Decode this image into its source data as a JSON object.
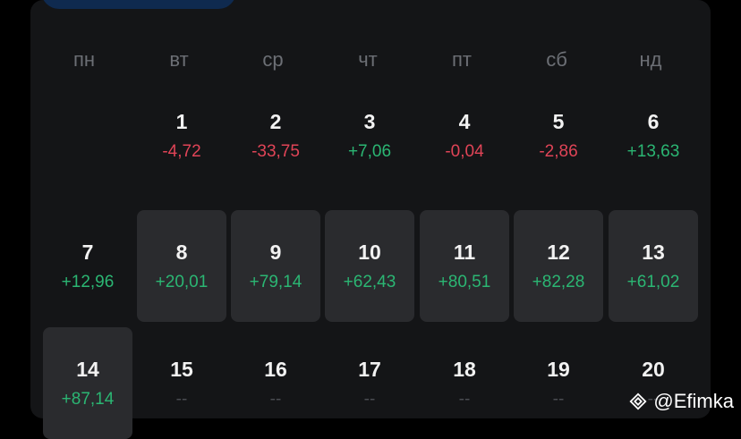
{
  "weekdays": [
    "пн",
    "вт",
    "ср",
    "чт",
    "пт",
    "сб",
    "нд"
  ],
  "rows": [
    [
      null,
      {
        "day": "1",
        "value": "-4,72",
        "status": "neg",
        "highlight": false
      },
      {
        "day": "2",
        "value": "-33,75",
        "status": "neg",
        "highlight": false
      },
      {
        "day": "3",
        "value": "+7,06",
        "status": "pos",
        "highlight": false
      },
      {
        "day": "4",
        "value": "-0,04",
        "status": "neg",
        "highlight": false
      },
      {
        "day": "5",
        "value": "-2,86",
        "status": "neg",
        "highlight": false
      },
      {
        "day": "6",
        "value": "+13,63",
        "status": "pos",
        "highlight": false
      }
    ],
    [
      {
        "day": "7",
        "value": "+12,96",
        "status": "pos",
        "highlight": false
      },
      {
        "day": "8",
        "value": "+20,01",
        "status": "pos",
        "highlight": true
      },
      {
        "day": "9",
        "value": "+79,14",
        "status": "pos",
        "highlight": true
      },
      {
        "day": "10",
        "value": "+62,43",
        "status": "pos",
        "highlight": true
      },
      {
        "day": "11",
        "value": "+80,51",
        "status": "pos",
        "highlight": true
      },
      {
        "day": "12",
        "value": "+82,28",
        "status": "pos",
        "highlight": true
      },
      {
        "day": "13",
        "value": "+61,02",
        "status": "pos",
        "highlight": true
      }
    ],
    [
      {
        "day": "14",
        "value": "+87,14",
        "status": "pos",
        "highlight": true
      },
      {
        "day": "15",
        "value": "--",
        "status": "none",
        "highlight": false
      },
      {
        "day": "16",
        "value": "--",
        "status": "none",
        "highlight": false
      },
      {
        "day": "17",
        "value": "--",
        "status": "none",
        "highlight": false
      },
      {
        "day": "18",
        "value": "--",
        "status": "none",
        "highlight": false
      },
      {
        "day": "19",
        "value": "--",
        "status": "none",
        "highlight": false
      },
      {
        "day": "20",
        "value": "--",
        "status": "none",
        "highlight": false
      }
    ]
  ],
  "watermark": {
    "text": "@Efimka",
    "icon": "binance-diamond-icon"
  },
  "colors": {
    "positive": "#2bb673",
    "negative": "#e04457",
    "empty": "#4a4c51",
    "highlight": "#2a2b2e"
  }
}
